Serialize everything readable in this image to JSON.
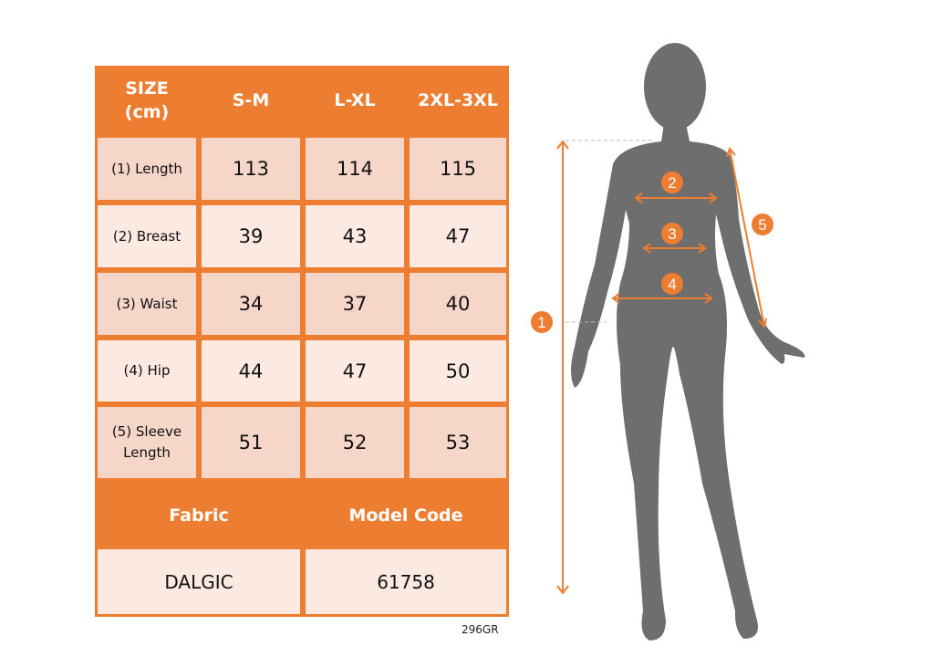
{
  "table": {
    "header": [
      "SIZE\n(cm)",
      "S-M",
      "L-XL",
      "2XL-3XL"
    ],
    "size_label_line1": "SIZE",
    "size_label_line2": "(cm)",
    "sizes": [
      "S-M",
      "L-XL",
      "2XL-3XL"
    ],
    "rows": [
      {
        "label": "(1) Length",
        "values": [
          "113",
          "114",
          "115"
        ]
      },
      {
        "label": "(2) Breast",
        "values": [
          "39",
          "43",
          "47"
        ]
      },
      {
        "label": "(3) Waist",
        "values": [
          "34",
          "37",
          "40"
        ]
      },
      {
        "label": "(4) Hip",
        "values": [
          "44",
          "47",
          "50"
        ]
      },
      {
        "label_line1": "(5) Sleeve",
        "label_line2": "Length",
        "values": [
          "51",
          "52",
          "53"
        ]
      }
    ],
    "footer_headers": {
      "fabric": "Fabric",
      "model_code": "Model Code"
    },
    "footer_values": {
      "fabric": "DALGIC",
      "model_code": "61758"
    }
  },
  "product_code": "296GR",
  "figure": {
    "markers": [
      "1",
      "2",
      "3",
      "4",
      "5"
    ],
    "colors": {
      "accent": "#ED7D31",
      "silhouette": "#6E6E6E",
      "row_dark": "#F7D6CA",
      "row_light": "#FBE9E2"
    }
  }
}
